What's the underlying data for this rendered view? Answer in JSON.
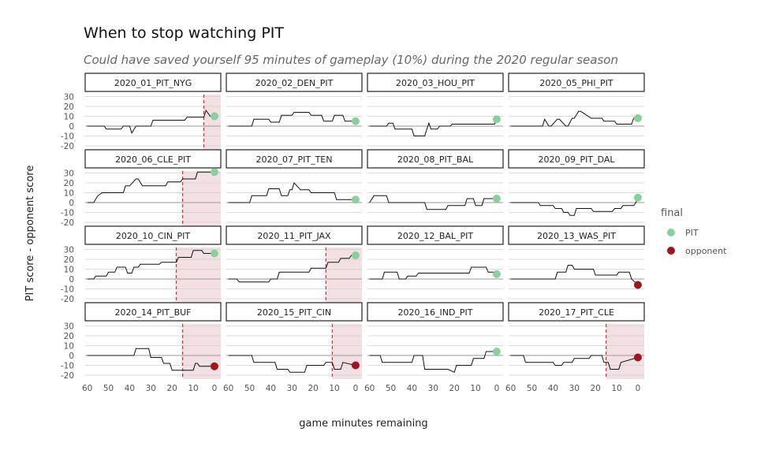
{
  "chart_data": {
    "type": "line",
    "title": "When to stop watching PIT",
    "subtitle": "Could have saved yourself 95 minutes of gameplay (10%) during the 2020 regular season",
    "xlabel": "game minutes remaining",
    "ylabel": "PIT score - opponent score",
    "xlim": [
      61,
      -3
    ],
    "ylim": [
      -24,
      32
    ],
    "x_ticks": [
      60,
      50,
      40,
      30,
      20,
      10,
      0
    ],
    "y_ticks": [
      30,
      20,
      10,
      0,
      -10,
      -20
    ],
    "legend": {
      "title": "final",
      "position": "right",
      "entries": [
        {
          "label": "PIT",
          "color": "#88d19a"
        },
        {
          "label": "opponent",
          "color": "#a0141e"
        }
      ]
    },
    "colors": {
      "line": "#111111",
      "cutoff": "#e8262d",
      "shade": "#f3e0e3",
      "grid": "#cfcfcf",
      "zero": "#9a9a9a"
    },
    "series": [
      {
        "name": "2020_01_PIT_NYG",
        "cutoff": 5,
        "final_winner": "PIT",
        "x": [
          60,
          52,
          51,
          44,
          43,
          40,
          39,
          37,
          30,
          29,
          14,
          13,
          5,
          4,
          2,
          0
        ],
        "y": [
          0,
          0,
          -3,
          -3,
          0,
          0,
          -7,
          0,
          0,
          6,
          6,
          9,
          9,
          16,
          10,
          10
        ]
      },
      {
        "name": "2020_02_DEN_PIT",
        "cutoff": null,
        "final_winner": "PIT",
        "x": [
          60,
          49,
          48,
          41,
          40,
          36,
          35,
          30,
          29,
          22,
          21,
          16,
          15,
          11,
          10,
          6,
          5,
          0
        ],
        "y": [
          0,
          0,
          7,
          7,
          4,
          4,
          11,
          11,
          14,
          14,
          11,
          11,
          5,
          5,
          11,
          11,
          5,
          5
        ],
        "annotations": []
      },
      {
        "name": "2020_03_HOU_PIT",
        "cutoff": null,
        "final_winner": "PIT",
        "x": [
          60,
          52,
          51,
          49,
          48,
          40,
          39,
          34,
          33,
          32,
          31,
          28,
          27,
          22,
          21,
          1,
          0
        ],
        "y": [
          0,
          0,
          3,
          3,
          -3,
          -3,
          -10,
          -10,
          -3,
          3,
          -3,
          -3,
          0,
          0,
          2,
          2,
          7
        ]
      },
      {
        "name": "2020_05_PHI_PIT",
        "cutoff": null,
        "final_winner": "PIT",
        "x": [
          60,
          45,
          44,
          42,
          41,
          38,
          37,
          34,
          33,
          31,
          30,
          28,
          27,
          22,
          21,
          17,
          16,
          11,
          10,
          3,
          2,
          0
        ],
        "y": [
          0,
          0,
          7,
          0,
          0,
          7,
          7,
          0,
          0,
          8,
          8,
          15,
          15,
          8,
          8,
          8,
          5,
          5,
          2,
          2,
          8,
          8
        ]
      },
      {
        "name": "2020_06_CLE_PIT",
        "cutoff": 15,
        "final_winner": "PIT",
        "x": [
          60,
          57,
          55,
          53,
          43,
          42,
          40,
          37,
          36,
          34,
          23,
          22,
          16,
          15,
          9,
          8,
          0
        ],
        "y": [
          0,
          0,
          7,
          10,
          10,
          17,
          17,
          24,
          24,
          17,
          17,
          21,
          21,
          24,
          24,
          31,
          31
        ]
      },
      {
        "name": "2020_07_PIT_TEN",
        "cutoff": null,
        "final_winner": "PIT",
        "x": [
          60,
          50,
          49,
          42,
          41,
          36,
          35,
          32,
          31,
          30,
          29,
          26,
          25,
          22,
          21,
          17,
          16,
          10,
          9,
          0
        ],
        "y": [
          0,
          0,
          7,
          7,
          14,
          14,
          7,
          7,
          13,
          13,
          20,
          13,
          13,
          13,
          10,
          10,
          10,
          10,
          3,
          3
        ]
      },
      {
        "name": "2020_08_PIT_BAL",
        "cutoff": null,
        "final_winner": "PIT",
        "x": [
          60,
          58,
          56,
          52,
          51,
          34,
          33,
          28,
          27,
          24,
          23,
          15,
          14,
          11,
          10,
          7,
          6,
          0
        ],
        "y": [
          0,
          7,
          7,
          7,
          0,
          0,
          -7,
          -7,
          -7,
          -7,
          -3,
          -3,
          4,
          4,
          -3,
          -3,
          4,
          4
        ]
      },
      {
        "name": "2020_09_PIT_DAL",
        "cutoff": null,
        "final_winner": "PIT",
        "x": [
          60,
          47,
          46,
          40,
          39,
          36,
          35,
          33,
          32,
          30,
          29,
          22,
          21,
          12,
          11,
          8,
          7,
          2,
          1,
          0
        ],
        "y": [
          0,
          0,
          -3,
          -3,
          -6,
          -6,
          -10,
          -10,
          -13,
          -13,
          -6,
          -6,
          -9,
          -9,
          -6,
          -6,
          -3,
          -3,
          0,
          5
        ]
      },
      {
        "name": "2020_10_CIN_PIT",
        "cutoff": 18,
        "final_winner": "PIT",
        "x": [
          60,
          57,
          56,
          51,
          50,
          47,
          46,
          42,
          41,
          39,
          38,
          36,
          35,
          26,
          25,
          18,
          17,
          11,
          10,
          6,
          5,
          0
        ],
        "y": [
          0,
          0,
          3,
          3,
          7,
          7,
          12,
          12,
          6,
          6,
          12,
          12,
          15,
          15,
          17,
          17,
          22,
          22,
          29,
          29,
          26,
          26
        ]
      },
      {
        "name": "2020_11_PIT_JAX",
        "cutoff": 14,
        "final_winner": "PIT",
        "x": [
          60,
          56,
          55,
          41,
          40,
          37,
          36,
          22,
          21,
          14,
          13,
          8,
          7,
          3,
          2,
          0
        ],
        "y": [
          0,
          0,
          -3,
          -3,
          0,
          0,
          7,
          7,
          11,
          11,
          17,
          17,
          21,
          21,
          24,
          24
        ]
      },
      {
        "name": "2020_12_BAL_PIT",
        "cutoff": null,
        "final_winner": "PIT",
        "x": [
          60,
          54,
          53,
          47,
          46,
          43,
          42,
          38,
          37,
          13,
          12,
          5,
          4,
          1,
          0
        ],
        "y": [
          0,
          0,
          7,
          7,
          0,
          0,
          3,
          3,
          6,
          6,
          12,
          12,
          7,
          7,
          5
        ]
      },
      {
        "name": "2020_13_WAS_PIT",
        "cutoff": null,
        "final_winner": "opponent",
        "x": [
          60,
          39,
          38,
          34,
          33,
          31,
          30,
          27,
          26,
          21,
          20,
          15,
          14,
          10,
          9,
          4,
          3,
          0
        ],
        "y": [
          0,
          0,
          7,
          7,
          14,
          14,
          10,
          10,
          10,
          10,
          4,
          4,
          4,
          4,
          7,
          7,
          0,
          -6
        ]
      },
      {
        "name": "2020_14_PIT_BUF",
        "cutoff": 15,
        "final_winner": "opponent",
        "x": [
          60,
          38,
          37,
          31,
          30,
          26,
          25,
          24,
          23,
          21,
          20,
          10,
          9,
          8,
          7,
          0
        ],
        "y": [
          0,
          0,
          7,
          7,
          -2,
          -2,
          -2,
          -8,
          -8,
          -8,
          -15,
          -15,
          -8,
          -8,
          -11,
          -11
        ]
      },
      {
        "name": "2020_15_PIT_CIN",
        "cutoff": 11,
        "final_winner": "opponent",
        "x": [
          60,
          49,
          48,
          43,
          42,
          38,
          37,
          32,
          31,
          24,
          23,
          15,
          14,
          11,
          10,
          7,
          6,
          0
        ],
        "y": [
          0,
          0,
          -7,
          -7,
          -7,
          -7,
          -14,
          -14,
          -17,
          -17,
          -10,
          -10,
          -7,
          -7,
          -14,
          -14,
          -7,
          -10
        ]
      },
      {
        "name": "2020_16_IND_PIT",
        "cutoff": null,
        "final_winner": "PIT",
        "x": [
          60,
          55,
          54,
          47,
          46,
          40,
          39,
          35,
          34,
          24,
          23,
          20,
          19,
          12,
          11,
          6,
          5,
          1,
          0
        ],
        "y": [
          0,
          0,
          -7,
          -7,
          -7,
          -7,
          0,
          0,
          -14,
          -14,
          -14,
          -17,
          -10,
          -10,
          -3,
          -3,
          4,
          4,
          4
        ]
      },
      {
        "name": "2020_17_PIT_CLE",
        "cutoff": 15,
        "final_winner": "opponent",
        "x": [
          60,
          54,
          53,
          40,
          39,
          36,
          35,
          31,
          30,
          23,
          22,
          17,
          16,
          14,
          13,
          9,
          8,
          0
        ],
        "y": [
          0,
          0,
          -7,
          -7,
          -10,
          -10,
          -7,
          -7,
          -3,
          -3,
          0,
          0,
          -7,
          -7,
          -14,
          -14,
          -7,
          -2
        ]
      }
    ]
  }
}
